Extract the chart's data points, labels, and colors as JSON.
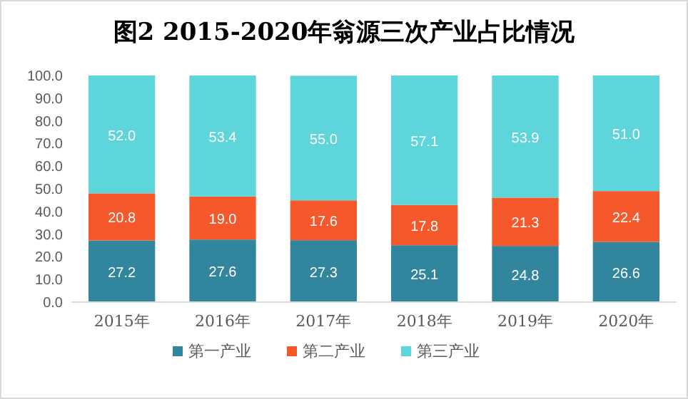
{
  "chart_data": {
    "type": "bar",
    "stacked": true,
    "title": "图2 2015-2020年翁源三次产业占比情况",
    "categories": [
      "2015年",
      "2016年",
      "2017年",
      "2018年",
      "2019年",
      "2020年"
    ],
    "series": [
      {
        "name": "第一产业",
        "color": "#31859c",
        "values": [
          27.2,
          27.6,
          27.3,
          25.1,
          24.8,
          26.6
        ],
        "value_labels": [
          "27.2",
          "27.6",
          "27.3",
          "25.1",
          "24.8",
          "26.6"
        ]
      },
      {
        "name": "第二产业",
        "color": "#f5582b",
        "values": [
          20.8,
          19.0,
          17.6,
          17.8,
          21.3,
          22.4
        ],
        "value_labels": [
          "20.8",
          "19.0",
          "17.6",
          "17.8",
          "21.3",
          "22.4"
        ]
      },
      {
        "name": "第三产业",
        "color": "#5ed4db",
        "values": [
          52.0,
          53.4,
          55.0,
          57.1,
          53.9,
          51.0
        ],
        "value_labels": [
          "52.0",
          "53.4",
          "55.0",
          "57.1",
          "53.9",
          "51.0"
        ]
      }
    ],
    "ylim": [
      0,
      100
    ],
    "yticks": [
      {
        "value": 0,
        "label": "0.0"
      },
      {
        "value": 10,
        "label": "10.0"
      },
      {
        "value": 20,
        "label": "20.0"
      },
      {
        "value": 30,
        "label": "30.0"
      },
      {
        "value": 40,
        "label": "40.0"
      },
      {
        "value": 50,
        "label": "50.0"
      },
      {
        "value": 60,
        "label": "60.0"
      },
      {
        "value": 70,
        "label": "70.0"
      },
      {
        "value": 80,
        "label": "80.0"
      },
      {
        "value": 90,
        "label": "90.0"
      },
      {
        "value": 100,
        "label": "100.0"
      }
    ],
    "legend": "bottom"
  }
}
